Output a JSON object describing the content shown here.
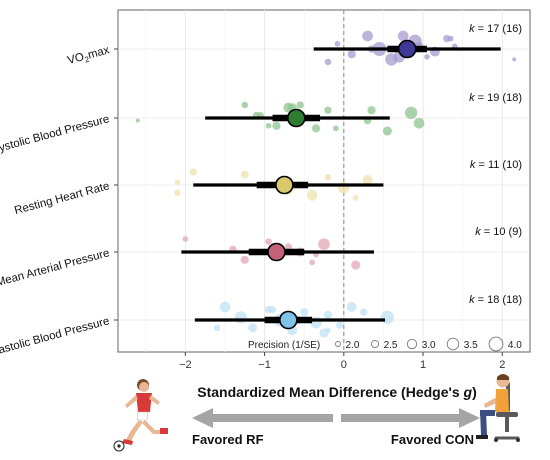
{
  "chart_data": {
    "type": "forest",
    "xlabel_main": "Standardized Mean Difference (Hedge's ",
    "xlabel_italic": "g",
    "xlabel_close": ")",
    "xlim": [
      -2.85,
      2.35
    ],
    "xticks": [
      -2,
      -1,
      0,
      1,
      2
    ],
    "xtick_labels": [
      "−2",
      "−1",
      "0",
      "1",
      "2"
    ],
    "reference_line": 0,
    "grid": true,
    "categories": [
      {
        "name": "VO₂max",
        "name_main": "VO",
        "name_sub": "2",
        "name_tail": "max",
        "k_label": "k = 17 (16)",
        "k_italic": "k",
        "k_rest": " = 17 (16)",
        "estimate": 0.8,
        "ci95": [
          -0.38,
          1.98
        ],
        "ci_inner": [
          0.55,
          1.05
        ],
        "color": "#3F3896",
        "light": "#A59BCE",
        "points": [
          {
            "x": 0.75,
            "p": 2.6
          },
          {
            "x": 0.95,
            "p": 2.4
          },
          {
            "x": 1.05,
            "p": 2.0
          },
          {
            "x": 1.3,
            "p": 2.2
          },
          {
            "x": 0.45,
            "p": 3.0
          },
          {
            "x": 0.6,
            "p": 2.8
          },
          {
            "x": 0.9,
            "p": 2.9
          },
          {
            "x": 1.15,
            "p": 2.5
          },
          {
            "x": -0.2,
            "p": 2.1
          },
          {
            "x": -0.08,
            "p": 2.0
          },
          {
            "x": 0.1,
            "p": 2.3
          },
          {
            "x": 0.3,
            "p": 2.6
          },
          {
            "x": 1.4,
            "p": 2.0
          },
          {
            "x": 0.7,
            "p": 2.7
          },
          {
            "x": 1.35,
            "p": 2.0
          },
          {
            "x": 0.35,
            "p": 2.2
          },
          {
            "x": 2.15,
            "p": 1.8
          }
        ]
      },
      {
        "name": "Systolic Blood Pressure",
        "k_label": "k = 19 (18)",
        "k_italic": "k",
        "k_rest": " = 19 (18)",
        "estimate": -0.6,
        "ci95": [
          -1.75,
          0.58
        ],
        "ci_inner": [
          -0.9,
          -0.3
        ],
        "color": "#2E7D32",
        "light": "#8DC48F",
        "points": [
          {
            "x": -1.25,
            "p": 2.1
          },
          {
            "x": -1.1,
            "p": 2.2
          },
          {
            "x": -0.95,
            "p": 2.0
          },
          {
            "x": -0.7,
            "p": 2.5
          },
          {
            "x": -0.55,
            "p": 2.8
          },
          {
            "x": -0.35,
            "p": 2.3
          },
          {
            "x": -0.2,
            "p": 2.2
          },
          {
            "x": 0.3,
            "p": 2.2
          },
          {
            "x": 0.55,
            "p": 2.4
          },
          {
            "x": 0.85,
            "p": 2.8
          },
          {
            "x": 0.95,
            "p": 2.6
          },
          {
            "x": -0.55,
            "p": 2.2
          },
          {
            "x": -1.05,
            "p": 2.1
          },
          {
            "x": -0.85,
            "p": 2.3
          },
          {
            "x": -0.65,
            "p": 2.4
          },
          {
            "x": -0.4,
            "p": 2.1
          },
          {
            "x": -0.1,
            "p": 2.0
          },
          {
            "x": 0.35,
            "p": 2.3
          },
          {
            "x": -2.6,
            "p": 1.8
          }
        ]
      },
      {
        "name": "Resting Heart Rate",
        "k_label": "k = 11 (10)",
        "k_italic": "k",
        "k_rest": " = 11 (10)",
        "estimate": -0.75,
        "ci95": [
          -1.9,
          0.5
        ],
        "ci_inner": [
          -1.1,
          -0.45
        ],
        "color": "#D9C96A",
        "light": "#EDE4AE",
        "points": [
          {
            "x": -1.9,
            "p": 2.2
          },
          {
            "x": -2.1,
            "p": 2.0
          },
          {
            "x": -2.1,
            "p": 2.1
          },
          {
            "x": -1.25,
            "p": 2.3
          },
          {
            "x": -0.85,
            "p": 2.0
          },
          {
            "x": -0.4,
            "p": 2.6
          },
          {
            "x": -0.2,
            "p": 2.1
          },
          {
            "x": 0.0,
            "p": 2.7
          },
          {
            "x": 0.15,
            "p": 2.0
          },
          {
            "x": 0.3,
            "p": 2.5
          },
          {
            "x": -0.7,
            "p": 2.4
          }
        ]
      },
      {
        "name": "Mean Arterial Pressure",
        "k_label": "k = 10 (9)",
        "k_italic": "k",
        "k_rest": " = 10 (9)",
        "estimate": -0.85,
        "ci95": [
          -2.05,
          0.38
        ],
        "ci_inner": [
          -1.2,
          -0.5
        ],
        "color": "#C4607A",
        "light": "#E2A7B6",
        "points": [
          {
            "x": -2.0,
            "p": 2.0
          },
          {
            "x": -1.4,
            "p": 2.2
          },
          {
            "x": -1.25,
            "p": 2.3
          },
          {
            "x": -0.95,
            "p": 2.1
          },
          {
            "x": -0.55,
            "p": 2.4
          },
          {
            "x": -0.4,
            "p": 2.0
          },
          {
            "x": -0.25,
            "p": 2.7
          },
          {
            "x": -0.35,
            "p": 2.0
          },
          {
            "x": 0.15,
            "p": 2.4
          },
          {
            "x": -0.7,
            "p": 2.2
          }
        ]
      },
      {
        "name": "Diastolic Blood Pressure",
        "k_label": "k = 18 (18)",
        "k_italic": "k",
        "k_rest": " = 18 (18)",
        "estimate": -0.7,
        "ci95": [
          -1.88,
          0.52
        ],
        "ci_inner": [
          -1.0,
          -0.4
        ],
        "color": "#7FC4E8",
        "light": "#BFE1F4",
        "points": [
          {
            "x": -1.5,
            "p": 2.6
          },
          {
            "x": -1.3,
            "p": 2.8
          },
          {
            "x": -1.15,
            "p": 2.4
          },
          {
            "x": -0.95,
            "p": 2.2
          },
          {
            "x": -0.8,
            "p": 2.9
          },
          {
            "x": -0.65,
            "p": 2.5
          },
          {
            "x": -0.5,
            "p": 2.3
          },
          {
            "x": -0.35,
            "p": 2.7
          },
          {
            "x": -0.25,
            "p": 2.4
          },
          {
            "x": -0.2,
            "p": 2.3
          },
          {
            "x": -0.05,
            "p": 2.2
          },
          {
            "x": 0.1,
            "p": 2.5
          },
          {
            "x": 0.55,
            "p": 2.9
          },
          {
            "x": -1.6,
            "p": 2.1
          },
          {
            "x": -0.9,
            "p": 2.2
          },
          {
            "x": -0.6,
            "p": 2.4
          },
          {
            "x": -0.2,
            "p": 2.0
          },
          {
            "x": 0.25,
            "p": 2.2
          }
        ]
      }
    ],
    "legend": {
      "title": "Precision (1/SE)",
      "placement": "bottom-right, inside plot",
      "entries": [
        {
          "label": "2.0",
          "value": 2.0
        },
        {
          "label": "2.5",
          "value": 2.5
        },
        {
          "label": "3.0",
          "value": 3.0
        },
        {
          "label": "3.5",
          "value": 3.5
        },
        {
          "label": "4.0",
          "value": 4.0
        }
      ]
    },
    "favored_left": "Favored RF",
    "favored_right": "Favored CON",
    "icons": [
      "soccer-player-icon",
      "seated-person-icon"
    ]
  }
}
